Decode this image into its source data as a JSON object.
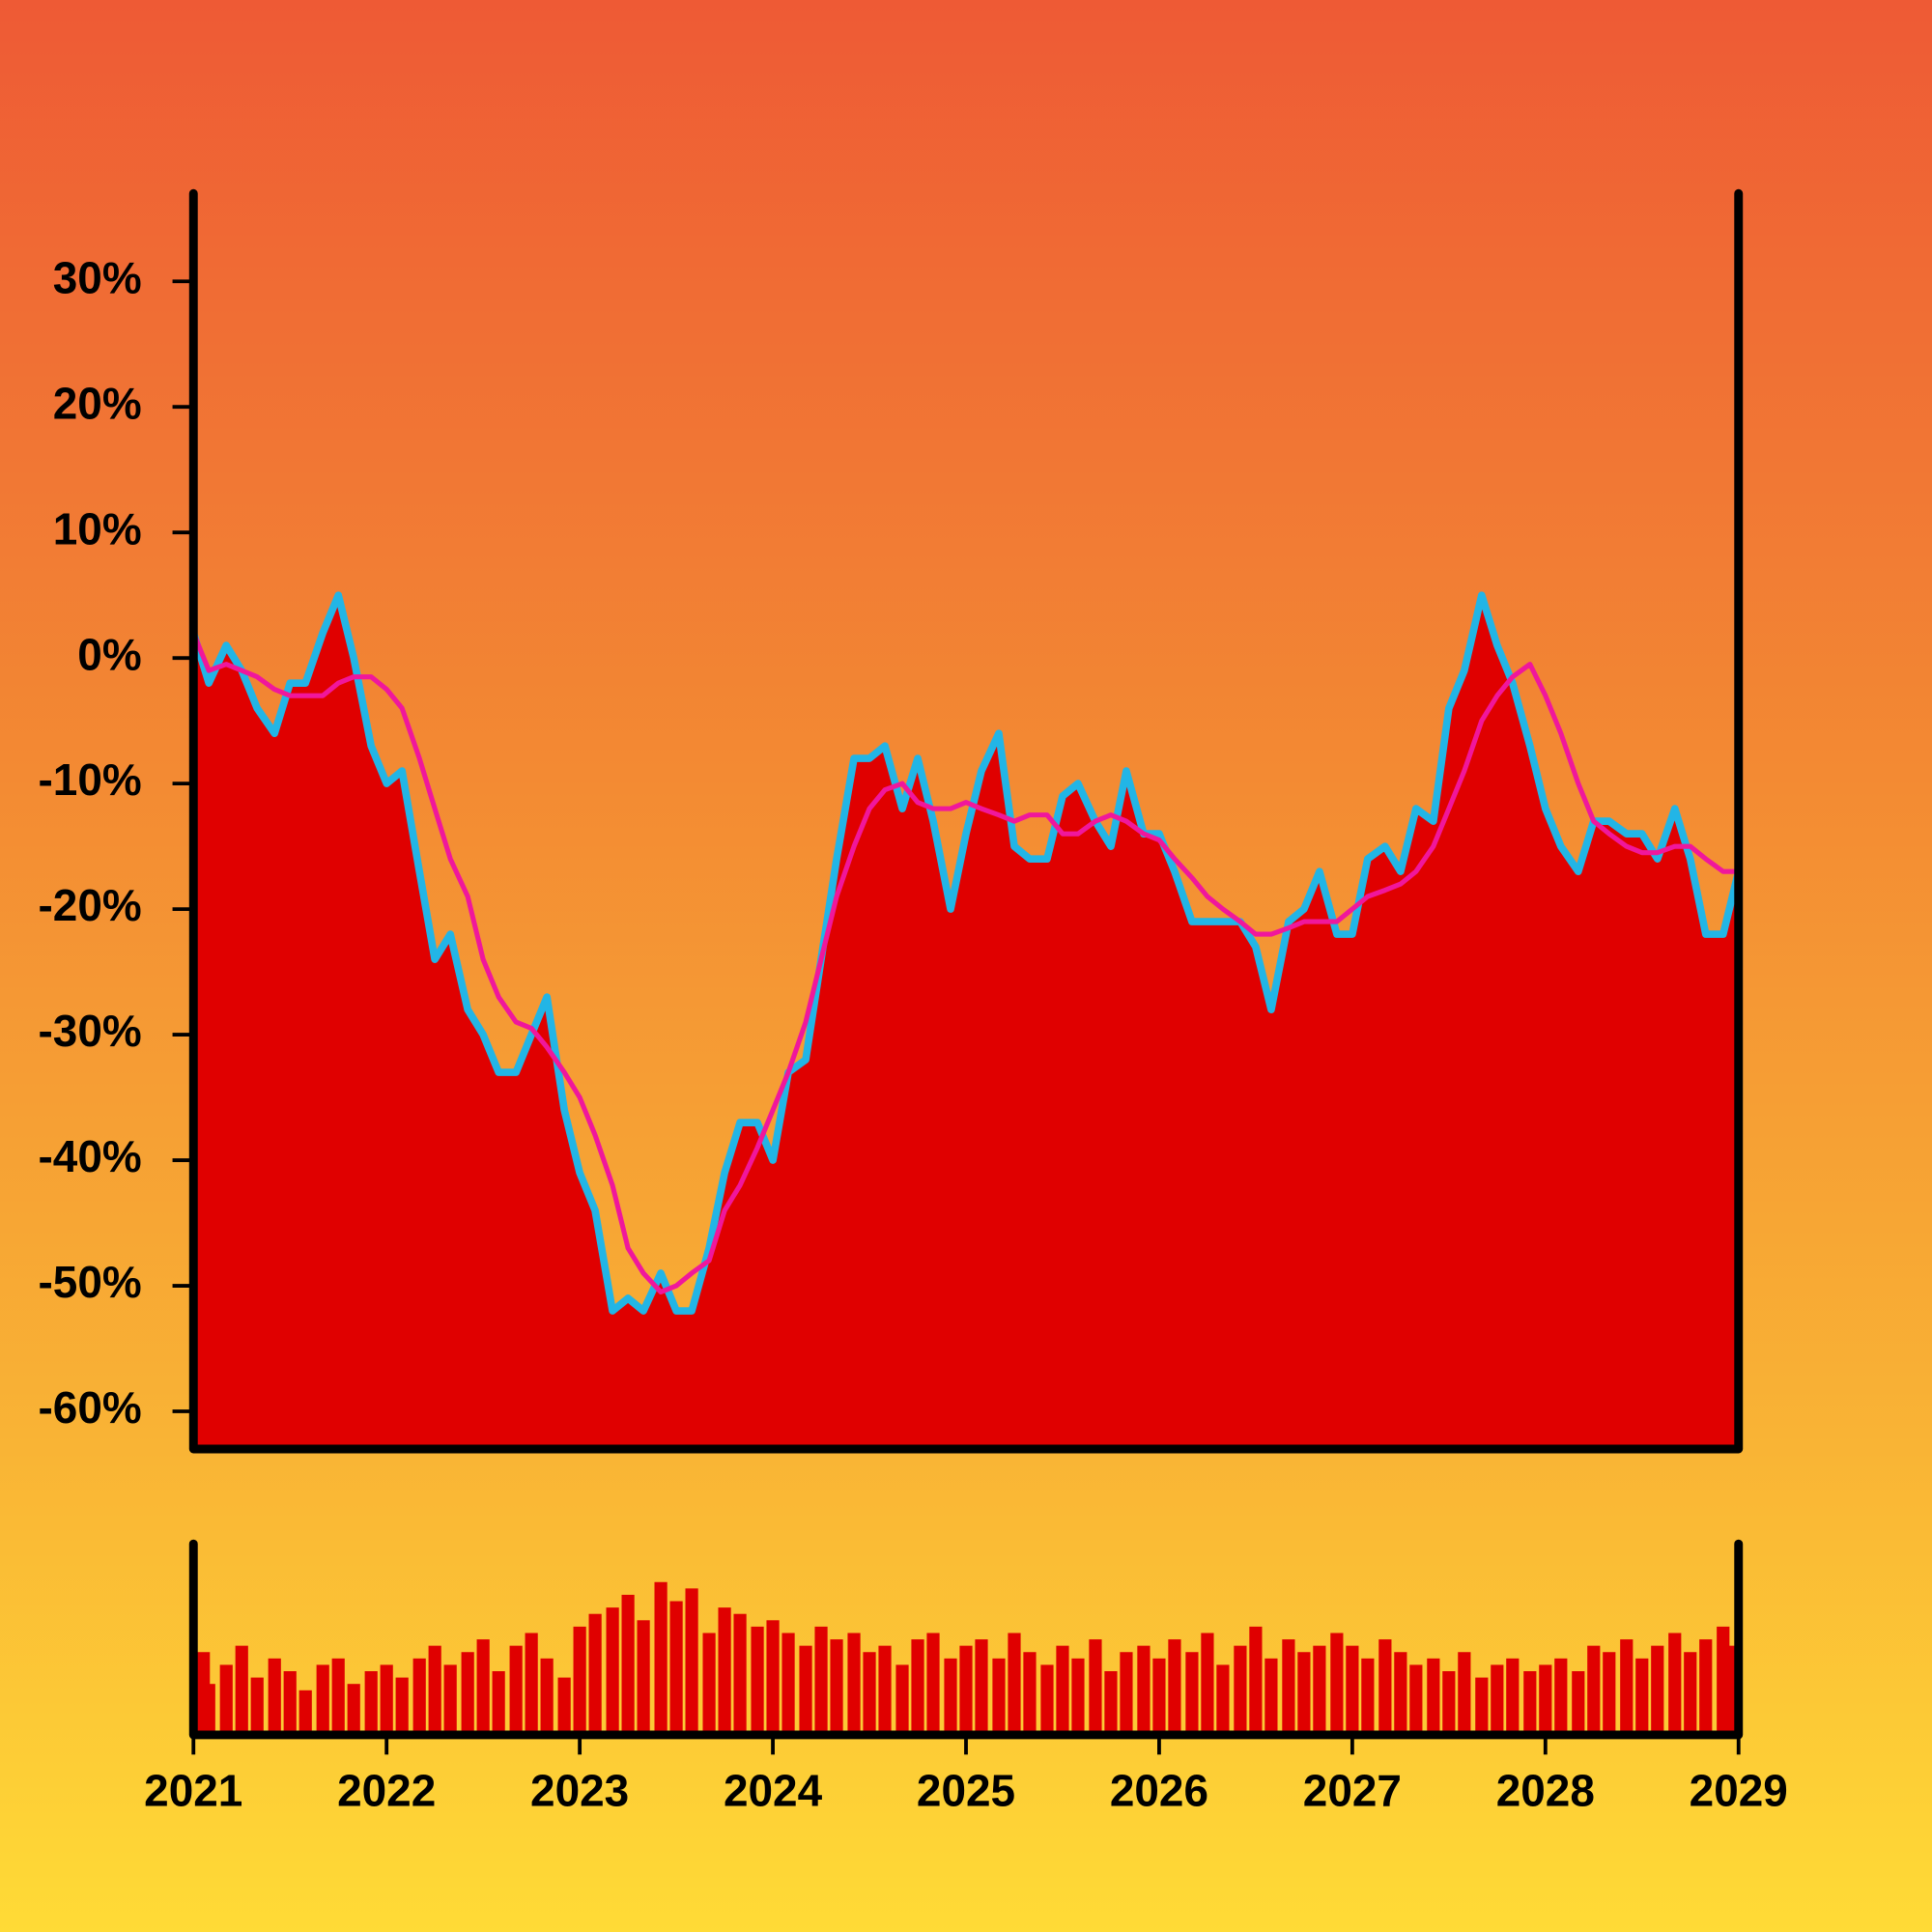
{
  "chart_data": [
    {
      "type": "area",
      "x": [
        2021.0,
        2021.08,
        2021.17,
        2021.25,
        2021.33,
        2021.42,
        2021.5,
        2021.58,
        2021.67,
        2021.75,
        2021.83,
        2021.92,
        2022.0,
        2022.08,
        2022.17,
        2022.25,
        2022.33,
        2022.42,
        2022.5,
        2022.58,
        2022.67,
        2022.75,
        2022.83,
        2022.92,
        2023.0,
        2023.08,
        2023.17,
        2023.25,
        2023.33,
        2023.42,
        2023.5,
        2023.58,
        2023.67,
        2023.75,
        2023.83,
        2023.92,
        2024.0,
        2024.08,
        2024.17,
        2024.25,
        2024.33,
        2024.42,
        2024.5,
        2024.58,
        2024.67,
        2024.75,
        2024.83,
        2024.92,
        2025.0,
        2025.08,
        2025.17,
        2025.25,
        2025.33,
        2025.42,
        2025.5,
        2025.58,
        2025.67,
        2025.75,
        2025.83,
        2025.92,
        2026.0,
        2026.08,
        2026.17,
        2026.25,
        2026.33,
        2026.42,
        2026.5,
        2026.58,
        2026.67,
        2026.75,
        2026.83,
        2026.92,
        2027.0,
        2027.08,
        2027.17,
        2027.25,
        2027.33,
        2027.42,
        2027.5,
        2027.58,
        2027.67,
        2027.75,
        2027.83,
        2027.92,
        2028.0,
        2028.08,
        2028.17,
        2028.25,
        2028.33,
        2028.42,
        2028.5,
        2028.58,
        2028.67,
        2028.75,
        2028.83,
        2028.92,
        2029.0
      ],
      "series": [
        {
          "color": "#e00000",
          "line_color": "#22b5e6",
          "values": [
            2,
            -2,
            1,
            -1,
            -4,
            -6,
            -2,
            -2,
            2,
            5,
            0,
            -7,
            -10,
            -9,
            -17,
            -24,
            -22,
            -28,
            -30,
            -33,
            -33,
            -30,
            -27,
            -36,
            -41,
            -44,
            -52,
            -51,
            -52,
            -49,
            -52,
            -52,
            -47,
            -41,
            -37,
            -37,
            -40,
            -33,
            -32,
            -24,
            -16,
            -8,
            -8,
            -7,
            -12,
            -8,
            -13,
            -20,
            -14,
            -9,
            -6,
            -15,
            -16,
            -16,
            -11,
            -10,
            -13,
            -15,
            -9,
            -14,
            -14,
            -17,
            -21,
            -21,
            -21,
            -21,
            -23,
            -28,
            -21,
            -20,
            -17,
            -22,
            -22,
            -16,
            -15,
            -17,
            -12,
            -13,
            -4,
            -1,
            5,
            1,
            -2,
            -7,
            -12,
            -15,
            -17,
            -13,
            -13,
            -14,
            -14,
            -16,
            -12,
            -16,
            -22,
            -22,
            -17
          ]
        },
        {
          "type": "line",
          "color": "#f0179c",
          "values": [
            2,
            -1,
            -0.5,
            -1,
            -1.5,
            -2.5,
            -3,
            -3,
            -3,
            -2,
            -1.5,
            -1.5,
            -2.5,
            -4,
            -8,
            -12,
            -16,
            -19,
            -24,
            -27,
            -29,
            -29.5,
            -31,
            -33,
            -35,
            -38,
            -42,
            -47,
            -49,
            -50.5,
            -50,
            -49,
            -48,
            -44,
            -42,
            -39,
            -36,
            -33,
            -29,
            -24,
            -19,
            -15,
            -12,
            -10.5,
            -10,
            -11.5,
            -12,
            -12,
            -11.5,
            -12,
            -12.5,
            -13,
            -12.5,
            -12.5,
            -14,
            -14,
            -13,
            -12.5,
            -13,
            -14,
            -14.5,
            -16,
            -17.5,
            -19,
            -20,
            -21,
            -22,
            -22,
            -21.5,
            -21,
            -21,
            -21,
            -20,
            -19,
            -18.5,
            -18,
            -17,
            -15,
            -12,
            -9,
            -5,
            -3,
            -1.5,
            -0.5,
            -3,
            -6,
            -10,
            -13,
            -14,
            -15,
            -15.5,
            -15.5,
            -15,
            -15,
            -16,
            -17,
            -17
          ]
        }
      ],
      "xlim": [
        2021,
        2029
      ],
      "ylim": [
        -63,
        37
      ],
      "yticks": [
        {
          "value": -60,
          "label": "-60%"
        },
        {
          "value": -50,
          "label": "-50%"
        },
        {
          "value": -40,
          "label": "-40%"
        },
        {
          "value": -30,
          "label": "-30%"
        },
        {
          "value": -20,
          "label": "-20%"
        },
        {
          "value": -10,
          "label": "-10%"
        },
        {
          "value": 0,
          "label": "0%"
        },
        {
          "value": 10,
          "label": "10%"
        },
        {
          "value": 20,
          "label": "20%"
        },
        {
          "value": 30,
          "label": "30%"
        }
      ]
    },
    {
      "type": "bar",
      "x": [
        2021.0,
        2021.08,
        2021.17,
        2021.25,
        2021.33,
        2021.42,
        2021.5,
        2021.58,
        2021.67,
        2021.75,
        2021.83,
        2021.92,
        2022.0,
        2022.08,
        2022.17,
        2022.25,
        2022.33,
        2022.42,
        2022.5,
        2022.58,
        2022.67,
        2022.75,
        2022.83,
        2022.92,
        2023.0,
        2023.08,
        2023.17,
        2023.25,
        2023.33,
        2023.42,
        2023.5,
        2023.58,
        2023.67,
        2023.75,
        2023.83,
        2023.92,
        2024.0,
        2024.08,
        2024.17,
        2024.25,
        2024.33,
        2024.42,
        2024.5,
        2024.58,
        2024.67,
        2024.75,
        2024.83,
        2024.92,
        2025.0,
        2025.08,
        2025.17,
        2025.25,
        2025.33,
        2025.42,
        2025.5,
        2025.58,
        2025.67,
        2025.75,
        2025.83,
        2025.92,
        2026.0,
        2026.08,
        2026.17,
        2026.25,
        2026.33,
        2026.42,
        2026.5,
        2026.58,
        2026.67,
        2026.75,
        2026.83,
        2026.92,
        2027.0,
        2027.08,
        2027.17,
        2027.25,
        2027.33,
        2027.42,
        2027.5,
        2027.58,
        2027.67,
        2027.75,
        2027.83,
        2027.92,
        2028.0,
        2028.08,
        2028.17,
        2028.25,
        2028.33,
        2028.42,
        2028.5,
        2028.58,
        2028.67,
        2028.75,
        2028.83,
        2028.92,
        2029.0
      ],
      "values": [
        65,
        40,
        55,
        70,
        45,
        60,
        50,
        35,
        55,
        60,
        40,
        50,
        55,
        45,
        60,
        70,
        55,
        65,
        75,
        50,
        70,
        80,
        60,
        45,
        85,
        95,
        100,
        110,
        90,
        120,
        105,
        115,
        80,
        100,
        95,
        85,
        90,
        80,
        70,
        85,
        75,
        80,
        65,
        70,
        55,
        75,
        80,
        60,
        70,
        75,
        60,
        80,
        65,
        55,
        70,
        60,
        75,
        50,
        65,
        70,
        60,
        75,
        65,
        80,
        55,
        70,
        85,
        60,
        75,
        65,
        70,
        80,
        70,
        60,
        75,
        65,
        55,
        60,
        50,
        65,
        45,
        55,
        60,
        50,
        55,
        60,
        50,
        70,
        65,
        75,
        60,
        70,
        80,
        65,
        75,
        85,
        70
      ],
      "color": "#e00000",
      "xlim": [
        2021,
        2029
      ],
      "ylim": [
        0,
        150
      ],
      "xticks": [
        2021,
        2022,
        2023,
        2024,
        2025,
        2026,
        2027,
        2028,
        2029
      ]
    }
  ]
}
